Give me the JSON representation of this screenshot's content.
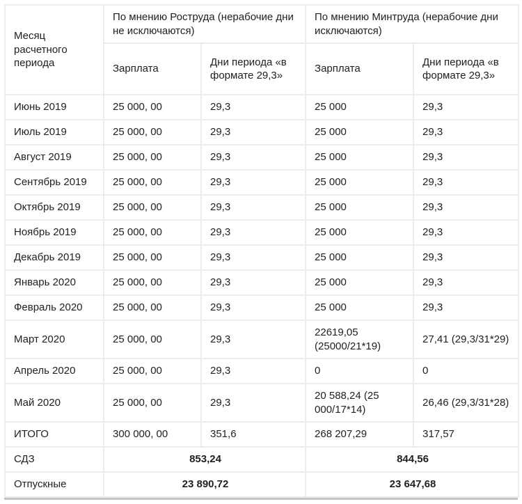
{
  "table": {
    "header": {
      "month_col": "Месяц расчетного периода",
      "groups": [
        {
          "title": "По мнению Роструда (нерабочие дни не исключаются)",
          "salary": "Зарплата",
          "days": "Дни периода «в формате 29,3»"
        },
        {
          "title": "По мнению Минтруда (нерабочие дни исключаются)",
          "salary": "Зарплата",
          "days": "Дни периода «в формате 29,3»"
        }
      ]
    },
    "rows": [
      {
        "month": "Июнь 2019",
        "rostrud_salary": "25 000, 00",
        "rostrud_days": "29,3",
        "mintrud_salary": "25 000",
        "mintrud_days": "29,3"
      },
      {
        "month": "Июль 2019",
        "rostrud_salary": "25 000, 00",
        "rostrud_days": "29,3",
        "mintrud_salary": "25 000",
        "mintrud_days": "29,3"
      },
      {
        "month": "Август 2019",
        "rostrud_salary": "25 000, 00",
        "rostrud_days": "29,3",
        "mintrud_salary": "25 000",
        "mintrud_days": "29,3"
      },
      {
        "month": "Сентябрь 2019",
        "rostrud_salary": "25 000, 00",
        "rostrud_days": "29,3",
        "mintrud_salary": "25 000",
        "mintrud_days": "29,3"
      },
      {
        "month": "Октябрь 2019",
        "rostrud_salary": "25 000, 00",
        "rostrud_days": "29,3",
        "mintrud_salary": "25 000",
        "mintrud_days": "29,3"
      },
      {
        "month": "Ноябрь 2019",
        "rostrud_salary": "25 000, 00",
        "rostrud_days": "29,3",
        "mintrud_salary": "25 000",
        "mintrud_days": "29,3"
      },
      {
        "month": "Декабрь 2019",
        "rostrud_salary": "25 000, 00",
        "rostrud_days": "29,3",
        "mintrud_salary": "25 000",
        "mintrud_days": "29,3"
      },
      {
        "month": "Январь 2020",
        "rostrud_salary": "25 000, 00",
        "rostrud_days": "29,3",
        "mintrud_salary": "25 000",
        "mintrud_days": "29,3"
      },
      {
        "month": "Февраль 2020",
        "rostrud_salary": "25 000, 00",
        "rostrud_days": "29,3",
        "mintrud_salary": "25 000",
        "mintrud_days": "29,3"
      },
      {
        "month": "Март 2020",
        "rostrud_salary": "25 000, 00",
        "rostrud_days": "29,3",
        "mintrud_salary": "22619,05 (25000/21*19)",
        "mintrud_days": "27,41 (29,3/31*29)"
      },
      {
        "month": "Апрель 2020",
        "rostrud_salary": "25 000, 00",
        "rostrud_days": "29,3",
        "mintrud_salary": "0",
        "mintrud_days": "0"
      },
      {
        "month": "Май 2020",
        "rostrud_salary": "25 000, 00",
        "rostrud_days": "29,3",
        "mintrud_salary": "20 588,24 (25 000/17*14)",
        "mintrud_days": "26,46 (29,3/31*28)"
      },
      {
        "month": "ИТОГО",
        "rostrud_salary": "300 000, 00",
        "rostrud_days": "351,6",
        "mintrud_salary": "268 207,29",
        "mintrud_days": "317,57"
      }
    ],
    "summary": {
      "sdz": {
        "label": "СДЗ",
        "rostrud": "853,24",
        "mintrud": "844,56"
      },
      "vacation": {
        "label": "Отпускные",
        "rostrud": "23 890,72",
        "mintrud": "23 647,68"
      }
    }
  }
}
